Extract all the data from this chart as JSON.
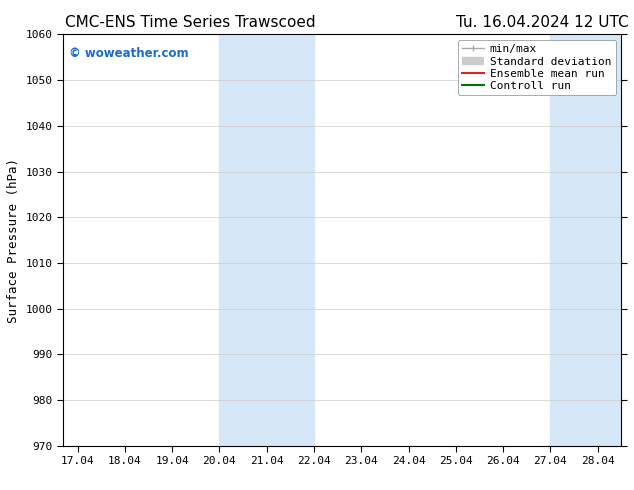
{
  "title_left": "CMC-ENS Time Series Trawscoed",
  "title_right": "Tu. 16.04.2024 12 UTC",
  "ylabel": "Surface Pressure (hPa)",
  "ylim": [
    970,
    1060
  ],
  "yticks": [
    970,
    980,
    990,
    1000,
    1010,
    1020,
    1030,
    1040,
    1050,
    1060
  ],
  "x_labels": [
    "17.04",
    "18.04",
    "19.04",
    "20.04",
    "21.04",
    "22.04",
    "23.04",
    "24.04",
    "25.04",
    "26.04",
    "27.04",
    "28.04"
  ],
  "x_values": [
    0,
    1,
    2,
    3,
    4,
    5,
    6,
    7,
    8,
    9,
    10,
    11
  ],
  "shaded_regions": [
    {
      "xmin": 3.0,
      "xmax": 5.0,
      "color": "#d6e8f7"
    },
    {
      "xmin": 10.0,
      "xmax": 11.5,
      "color": "#d6e8f7"
    }
  ],
  "watermark_text": "© woweather.com",
  "watermark_color": "#1a6bcc",
  "legend_items": [
    {
      "label": "min/max",
      "color": "#aaaaaa",
      "lw": 1.5
    },
    {
      "label": "Standard deviation",
      "color": "#cccccc",
      "lw": 5
    },
    {
      "label": "Ensemble mean run",
      "color": "#dd2222",
      "lw": 1.5
    },
    {
      "label": "Controll run",
      "color": "#007700",
      "lw": 1.5
    }
  ],
  "bg_color": "#ffffff",
  "spine_color": "#000000",
  "grid_color": "#cccccc",
  "title_fontsize": 11,
  "tick_fontsize": 8,
  "ylabel_fontsize": 9,
  "legend_fontsize": 8
}
